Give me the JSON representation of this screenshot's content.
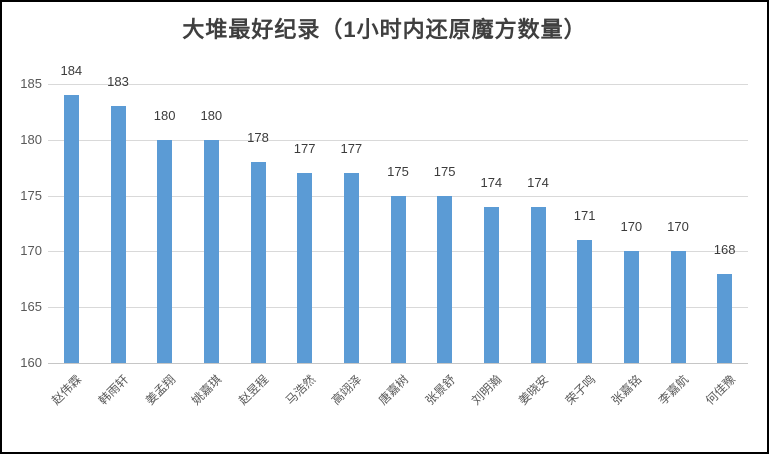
{
  "chart_data": {
    "type": "bar",
    "title": "大堆最好纪录（1小时内还原魔方数量）",
    "categories": [
      "赵伟霖",
      "韩雨轩",
      "姜孟翔",
      "姚嘉琪",
      "赵昱程",
      "马浩然",
      "高翊泽",
      "唐嘉树",
      "张景舒",
      "刘明瀚",
      "姜晓安",
      "荣子鸣",
      "张嘉铭",
      "李嘉航",
      "何佳豫"
    ],
    "values": [
      184,
      183,
      180,
      180,
      178,
      177,
      177,
      175,
      175,
      174,
      174,
      171,
      170,
      170,
      168
    ],
    "xlabel": "",
    "ylabel": "",
    "ylim": [
      160,
      185
    ],
    "yticks": [
      160,
      165,
      170,
      175,
      180,
      185
    ],
    "grid": true,
    "legend_position": "none",
    "data_labels": true,
    "bar_color": "#5B9BD5"
  },
  "colors": {
    "bar": "#5B9BD5",
    "gridline": "#D9D9D9",
    "axis_baseline": "#C6C6C6",
    "axis_text": "#595959",
    "value_label_text": "#3B3B3B",
    "title_text": "#3F3F3F",
    "frame_border": "#000000",
    "background": "#FFFFFF"
  }
}
